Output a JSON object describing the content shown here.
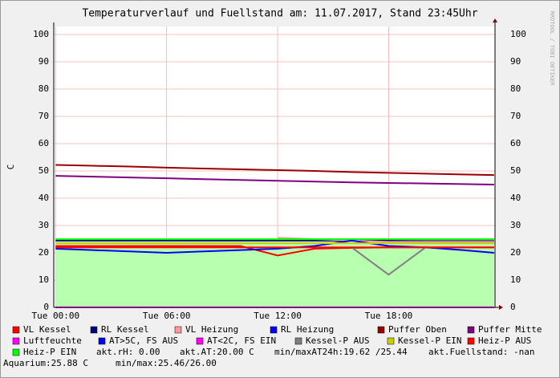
{
  "chart_data": {
    "type": "line",
    "title": "Temperaturverlauf und Fuellstand am: 11.07.2017, Stand 23:45Uhr",
    "y_label": "C",
    "watermark": "RRDTOOL / TOBI OETIKER",
    "x": [
      0,
      2,
      4,
      6,
      8,
      10,
      12,
      14,
      16,
      18,
      20,
      22,
      23.7
    ],
    "xlim": [
      -0.1,
      23.75
    ],
    "xticks": [
      {
        "value": 0,
        "label": "Tue 00:00"
      },
      {
        "value": 6,
        "label": "Tue 06:00"
      },
      {
        "value": 12,
        "label": "Tue 12:00"
      },
      {
        "value": 18,
        "label": "Tue 18:00"
      }
    ],
    "ylim": [
      0,
      100
    ],
    "yticks": [
      0,
      10,
      20,
      30,
      40,
      50,
      60,
      70,
      80,
      90,
      100
    ],
    "grid": true,
    "series": [
      {
        "name": "VL Kessel",
        "color": "#ff0000",
        "values": [
          22.5,
          22.5,
          22.5,
          22.5,
          22.5,
          22.5,
          19,
          21.5,
          21.8,
          22,
          22,
          22,
          22
        ]
      },
      {
        "name": "RL Kessel",
        "color": "#000080",
        "values": [
          24.5,
          24.5,
          24.5,
          24.5,
          24.5,
          24.5,
          24.5,
          24.5,
          24.4,
          24.4,
          24.3,
          24.3,
          24.3
        ]
      },
      {
        "name": "VL Heizung",
        "color": "#ff9999",
        "values": [
          null,
          null,
          null,
          null,
          null,
          null,
          25.5,
          25,
          24.5,
          24,
          24,
          24,
          24
        ]
      },
      {
        "name": "RL Heizung",
        "color": "#0000ff",
        "values": [
          21.5,
          21,
          20.5,
          20,
          20.5,
          21,
          21.5,
          22.5,
          24.5,
          22.5,
          22,
          21,
          20
        ]
      },
      {
        "name": "Puffer Oben",
        "color": "#990000",
        "values": [
          52.2,
          51.9,
          51.6,
          51.2,
          50.9,
          50.6,
          50.3,
          50,
          49.6,
          49.3,
          49,
          48.7,
          48.5
        ]
      },
      {
        "name": "Puffer Mitte",
        "color": "#800080",
        "values": [
          48.2,
          47.9,
          47.6,
          47.3,
          47,
          46.7,
          46.4,
          46.1,
          45.8,
          45.6,
          45.4,
          45.2,
          45
        ]
      },
      {
        "name": "Luftfeuchte",
        "color": "#ff00ff",
        "values": [
          0,
          0,
          0,
          0,
          0,
          0,
          0,
          0,
          0,
          0,
          0,
          0,
          0
        ]
      },
      {
        "name": "AT>5C, FS AUS",
        "color": "#0000ff",
        "values": [
          null,
          null,
          null,
          null,
          null,
          null,
          null,
          null,
          null,
          null,
          null,
          null,
          null
        ]
      },
      {
        "name": "AT<2C, FS EIN",
        "color": "#ff00ff",
        "values": [
          null,
          null,
          null,
          null,
          null,
          null,
          null,
          null,
          null,
          null,
          null,
          null,
          null
        ]
      },
      {
        "name": "Kessel-P AUS",
        "color": "#808080",
        "values": [
          null,
          null,
          null,
          null,
          null,
          null,
          null,
          null,
          22,
          12,
          22,
          null,
          null
        ]
      },
      {
        "name": "Kessel-P EIN",
        "color": "#cccc00",
        "values": [
          23.5,
          23.5,
          23.5,
          23.5,
          23.5,
          23.5,
          23.5,
          23.5,
          23.5,
          23.5,
          23.5,
          23.5,
          23.5
        ]
      },
      {
        "name": "Heiz-P AUS",
        "color": "#ff0000",
        "values": [
          22,
          22,
          22,
          22,
          22,
          22,
          22,
          22,
          22,
          22,
          22,
          22,
          22
        ]
      },
      {
        "name": "Heiz-P EIN",
        "color": "#00ff00",
        "area_color": "#b8ffb0",
        "values": [
          25,
          25,
          25,
          25,
          25,
          25,
          25,
          25,
          25,
          25,
          25,
          25,
          25
        ]
      }
    ],
    "notes": [
      "akt.rH: 0.00",
      "akt.AT:20.00 C",
      "min/maxAT24h:19.62 /25.44",
      "akt.Fuellstand: -nan",
      "Aquarium:25.88 C",
      "min/max:25.46/26.00"
    ]
  }
}
